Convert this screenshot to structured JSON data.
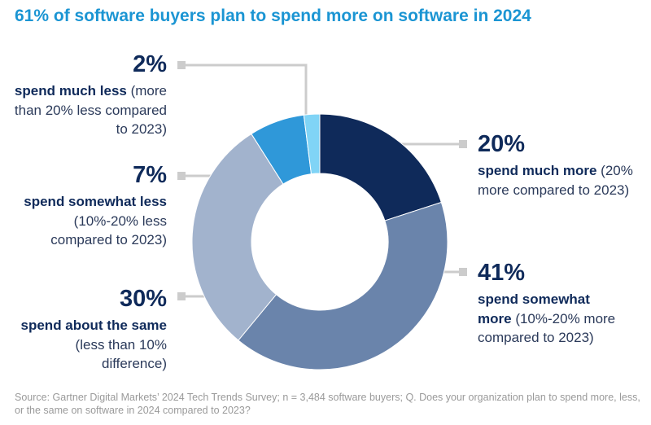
{
  "chart_data": {
    "type": "pie",
    "title": "61% of software buyers plan to spend more on software in 2024",
    "categories": [
      "spend much more",
      "spend somewhat more",
      "spend about the same",
      "spend somewhat less",
      "spend much less"
    ],
    "descriptions": [
      "(20% more compared to 2023)",
      "(10%-20% more compared to 2023)",
      "(less than 10% difference)",
      "(10%-20% less compared to 2023)",
      "(more than 20% less compared to 2023)"
    ],
    "values": [
      20,
      41,
      30,
      7,
      2
    ],
    "value_labels": [
      "20%",
      "41%",
      "30%",
      "7%",
      "2%"
    ],
    "colors": [
      "#0f2a5a",
      "#6a84ab",
      "#a2b3cd",
      "#2f98d9",
      "#80d4f6"
    ],
    "source": "Source: Gartner Digital Markets’ 2024 Tech Trends Survey; n = 3,484 software buyers; Q. Does your organization plan to spend more, less, or the same on software in 2024 compared to 2023?"
  }
}
